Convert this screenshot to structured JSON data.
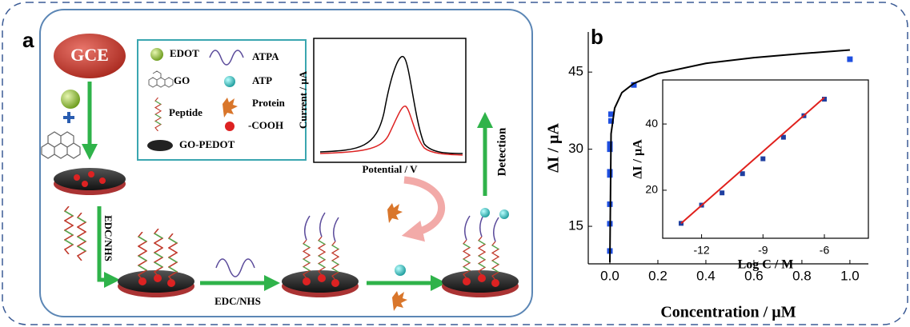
{
  "panel_a": {
    "label": "a",
    "gce": "GCE",
    "legend": [
      "EDOT",
      "GO",
      "Peptide",
      "GO-PEDOT",
      "ATPA",
      "ATP",
      "Protein",
      "-COOH"
    ],
    "inset_y_label": "Current / µA",
    "inset_x_label": "Potential / V",
    "detection": "Detection",
    "steps": [
      "EDC/NHS",
      "EDC/NHS"
    ]
  },
  "panel_b": {
    "label": "b"
  },
  "chart_data": [
    {
      "type": "scatter",
      "x_label": "Concentration / µM",
      "y_label": "ΔI / µA",
      "xlim": [
        -0.09,
        1.077
      ],
      "ylim": [
        7.7,
        52.8
      ],
      "xticks": [
        {
          "value": 0,
          "label": "0.0"
        },
        0.2,
        0.4,
        0.6,
        0.8,
        {
          "value": 1,
          "label": "1.0"
        }
      ],
      "yticks": [
        15,
        30,
        45
      ],
      "series": [
        {
          "color": "#1f4fe0",
          "marker": "square",
          "x": [
            0,
            0,
            0,
            0,
            0,
            0,
            0,
            0.005,
            0.005,
            0.1,
            1.0
          ],
          "values": [
            10.2,
            15.5,
            19.3,
            25,
            25.6,
            30,
            31,
            35.5,
            36.8,
            42.5,
            47.5
          ]
        },
        {
          "color": "#000000",
          "marker": "line",
          "x": [
            0,
            0.005,
            0.02,
            0.05,
            0.1,
            0.2,
            0.4,
            0.6,
            0.8,
            1.0
          ],
          "values": [
            8,
            33,
            38,
            41,
            42.8,
            44.7,
            46.7,
            47.8,
            48.6,
            49.3
          ]
        }
      ]
    },
    {
      "type": "scatter",
      "x_label": "Log C / M",
      "y_label": "ΔI / µA",
      "xlim": [
        -13.9,
        -3.85
      ],
      "ylim": [
        5.5,
        53.3
      ],
      "xticks": [
        -12,
        -9,
        -6
      ],
      "yticks": [
        20,
        40
      ],
      "series": [
        {
          "color": "#1f3fa0",
          "marker": "square",
          "x": [
            -13,
            -12,
            -11,
            -10,
            -9,
            -8,
            -7,
            -6
          ],
          "values": [
            10,
            15.5,
            19.2,
            25,
            29.5,
            36,
            42.5,
            47.5
          ]
        },
        {
          "color": "#e0201c",
          "marker": "line",
          "x": [
            -13,
            -6
          ],
          "values": [
            10,
            48
          ]
        }
      ]
    }
  ]
}
